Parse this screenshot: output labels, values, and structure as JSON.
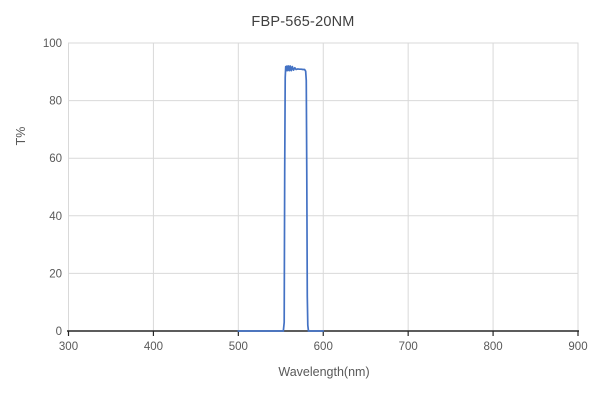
{
  "chart_data": {
    "type": "line",
    "title": "FBP-565-20NM",
    "xlabel": "Wavelength(nm)",
    "ylabel": "T%",
    "xlim": [
      300,
      900
    ],
    "ylim": [
      0,
      100
    ],
    "x_ticks": [
      300,
      400,
      500,
      600,
      700,
      800,
      900
    ],
    "y_ticks": [
      0,
      20,
      40,
      60,
      80,
      100
    ],
    "grid": true,
    "legend": "none",
    "series": [
      {
        "name": "T%",
        "color": "#4472C4",
        "points": [
          [
            500,
            0
          ],
          [
            548,
            0
          ],
          [
            553,
            0
          ],
          [
            554,
            3
          ],
          [
            554.6,
            55
          ],
          [
            555.2,
            88
          ],
          [
            555.8,
            91.8
          ],
          [
            556.6,
            90.4
          ],
          [
            557.4,
            92
          ],
          [
            558.2,
            90.4
          ],
          [
            559.2,
            92
          ],
          [
            560.2,
            90.4
          ],
          [
            561.2,
            92
          ],
          [
            562.4,
            90.4
          ],
          [
            563.6,
            91.8
          ],
          [
            565,
            90.6
          ],
          [
            566.5,
            91.4
          ],
          [
            568,
            90.8
          ],
          [
            570,
            91
          ],
          [
            572,
            90.9
          ],
          [
            574,
            90.9
          ],
          [
            576,
            90.8
          ],
          [
            578,
            90.8
          ],
          [
            579.3,
            90.2
          ],
          [
            580,
            87
          ],
          [
            580.6,
            55
          ],
          [
            581.2,
            12
          ],
          [
            581.8,
            2
          ],
          [
            582.6,
            0
          ],
          [
            585,
            0
          ],
          [
            600,
            0
          ]
        ]
      }
    ]
  },
  "colors": {
    "series": "#4472C4",
    "grid": "#D9D9D9",
    "axis": "#262626",
    "tick_text": "#595959",
    "title_text": "#404040"
  }
}
